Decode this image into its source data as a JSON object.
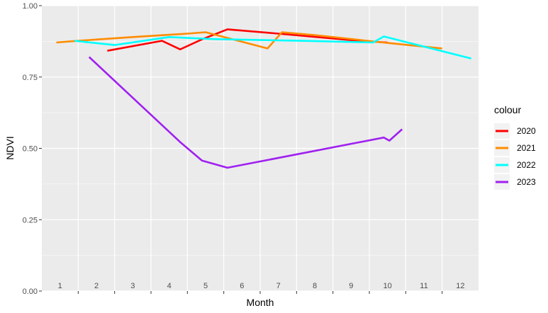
{
  "chart_data": {
    "type": "line",
    "title": "",
    "xlabel": "Month",
    "ylabel": "NDVI",
    "xlim": [
      0.5,
      12.5
    ],
    "ylim": [
      0,
      1
    ],
    "y_ticks": [
      0.0,
      0.25,
      0.5,
      0.75,
      1.0
    ],
    "y_tick_labels": [
      "0.00",
      "0.25",
      "0.50",
      "0.75",
      "1.00"
    ],
    "x_tick_labels": [
      {
        "x": 1,
        "label": "1"
      },
      {
        "x": 2,
        "label": "2"
      },
      {
        "x": 3,
        "label": "3"
      },
      {
        "x": 4,
        "label": "4"
      },
      {
        "x": 5,
        "label": "5"
      },
      {
        "x": 6,
        "label": "6"
      },
      {
        "x": 7,
        "label": "7"
      },
      {
        "x": 8,
        "label": "8"
      },
      {
        "x": 9,
        "label": "9"
      },
      {
        "x": 10,
        "label": "10"
      },
      {
        "x": 11,
        "label": "11"
      },
      {
        "x": 12,
        "label": "12"
      }
    ],
    "grid": true,
    "legend": {
      "title": "colour",
      "position": "right"
    },
    "series": [
      {
        "name": "2020",
        "color": "#ff0000",
        "points": [
          [
            2.3,
            0.842
          ],
          [
            3.8,
            0.877
          ],
          [
            4.3,
            0.847
          ],
          [
            4.9,
            0.882
          ],
          [
            5.6,
            0.917
          ],
          [
            7.0,
            0.902
          ],
          [
            9.2,
            0.877
          ],
          [
            10.0,
            0.871
          ]
        ]
      },
      {
        "name": "2021",
        "color": "#ff8c00",
        "points": [
          [
            0.9,
            0.871
          ],
          [
            1.5,
            0.877
          ],
          [
            3.0,
            0.89
          ],
          [
            4.5,
            0.902
          ],
          [
            5.0,
            0.907
          ],
          [
            6.7,
            0.85
          ],
          [
            7.1,
            0.907
          ],
          [
            8.0,
            0.897
          ],
          [
            9.8,
            0.872
          ],
          [
            11.5,
            0.85
          ]
        ]
      },
      {
        "name": "2022",
        "color": "#00ffff",
        "points": [
          [
            1.4,
            0.877
          ],
          [
            2.5,
            0.862
          ],
          [
            4.0,
            0.89
          ],
          [
            5.2,
            0.883
          ],
          [
            7.6,
            0.877
          ],
          [
            9.6,
            0.871
          ],
          [
            9.9,
            0.892
          ],
          [
            12.3,
            0.815
          ]
        ]
      },
      {
        "name": "2023",
        "color": "#a020f0",
        "points": [
          [
            1.8,
            0.82
          ],
          [
            4.3,
            0.522
          ],
          [
            4.9,
            0.457
          ],
          [
            5.6,
            0.432
          ],
          [
            9.9,
            0.538
          ],
          [
            10.05,
            0.527
          ],
          [
            10.4,
            0.567
          ]
        ]
      }
    ]
  }
}
